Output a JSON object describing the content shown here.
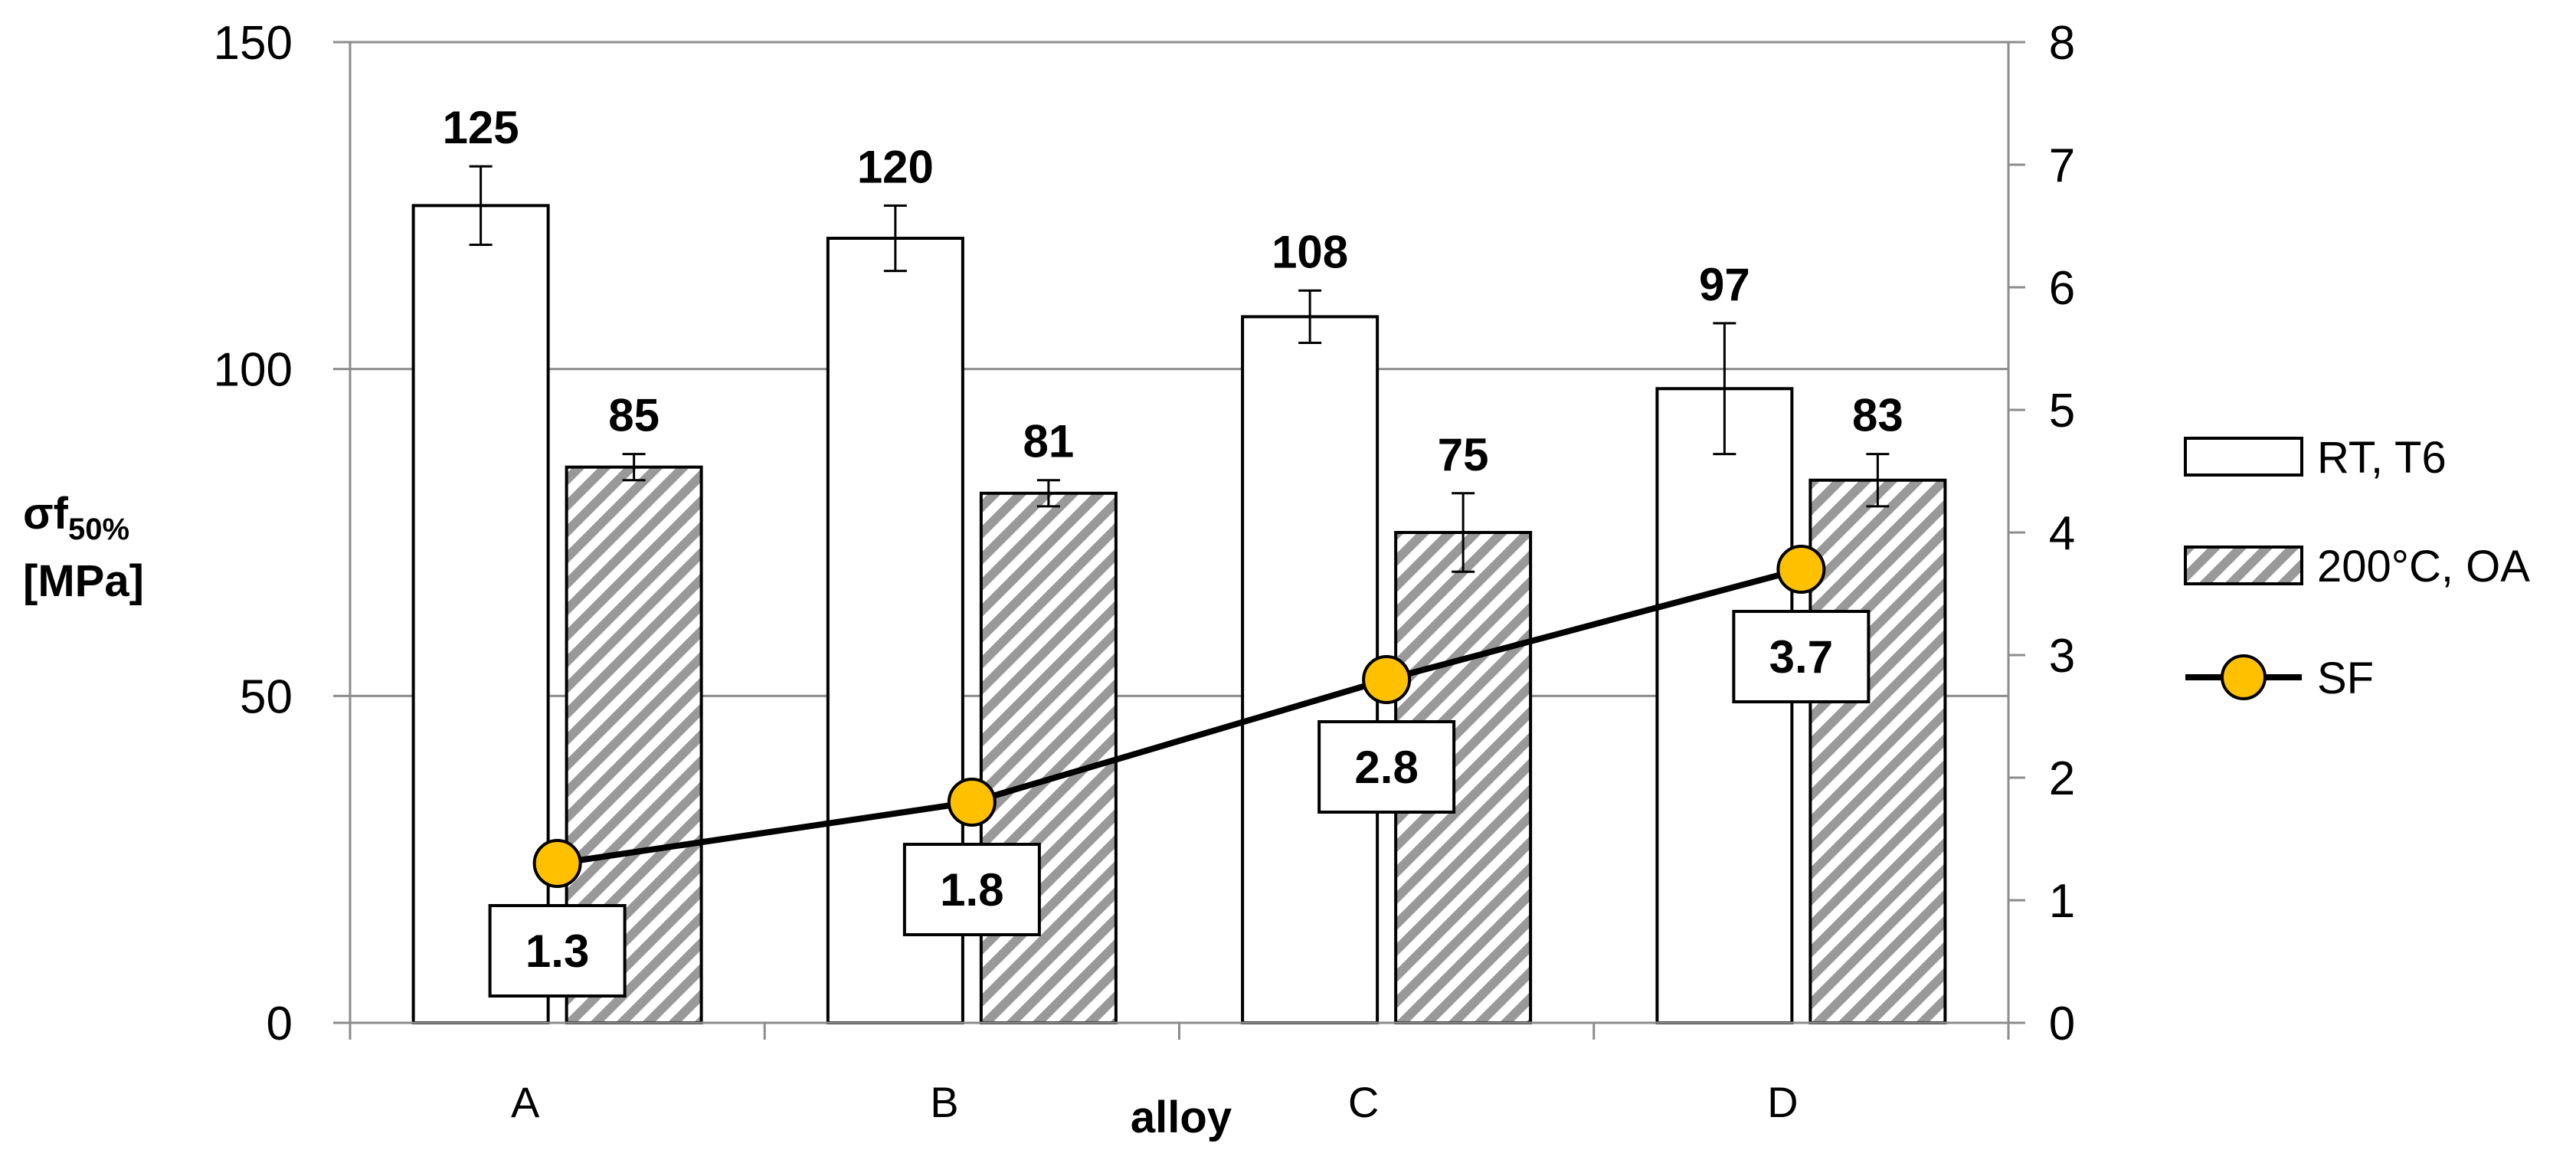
{
  "chart_data": {
    "type": "bar",
    "categories": [
      "A",
      "B",
      "C",
      "D"
    ],
    "series": [
      {
        "name": "RT, T6",
        "values": [
          125,
          120,
          108,
          97
        ],
        "error": [
          6,
          5,
          4,
          10
        ],
        "fill": "#ffffff",
        "pattern": "none",
        "axis": "left"
      },
      {
        "name": "200°C, OA",
        "values": [
          85,
          81,
          75,
          83
        ],
        "error": [
          2,
          2,
          6,
          4
        ],
        "fill": "#999999",
        "pattern": "diagonal-hatch",
        "axis": "left"
      },
      {
        "name": "SF",
        "type": "line",
        "values": [
          1.3,
          1.8,
          2.8,
          3.7
        ],
        "labels": [
          "1.3",
          "1.8",
          "2.8",
          "3.7"
        ],
        "color": "#000000",
        "marker_color": "#ffc000",
        "axis": "right"
      }
    ],
    "bar_labels": [
      [
        "125",
        "120",
        "108",
        "97"
      ],
      [
        "85",
        "81",
        "75",
        "83"
      ]
    ],
    "xlabel": "alloy",
    "ylabel": {
      "main": "σf",
      "sub": "50%",
      "unit": "[MPa]"
    },
    "ylim": [
      0,
      150
    ],
    "yticks": [
      "0",
      "50",
      "100",
      "150"
    ],
    "y2lim": [
      0,
      8
    ],
    "y2ticks": [
      "0",
      "1",
      "2",
      "3",
      "4",
      "5",
      "6",
      "7",
      "8"
    ],
    "grid": true,
    "legend_position": "right"
  }
}
